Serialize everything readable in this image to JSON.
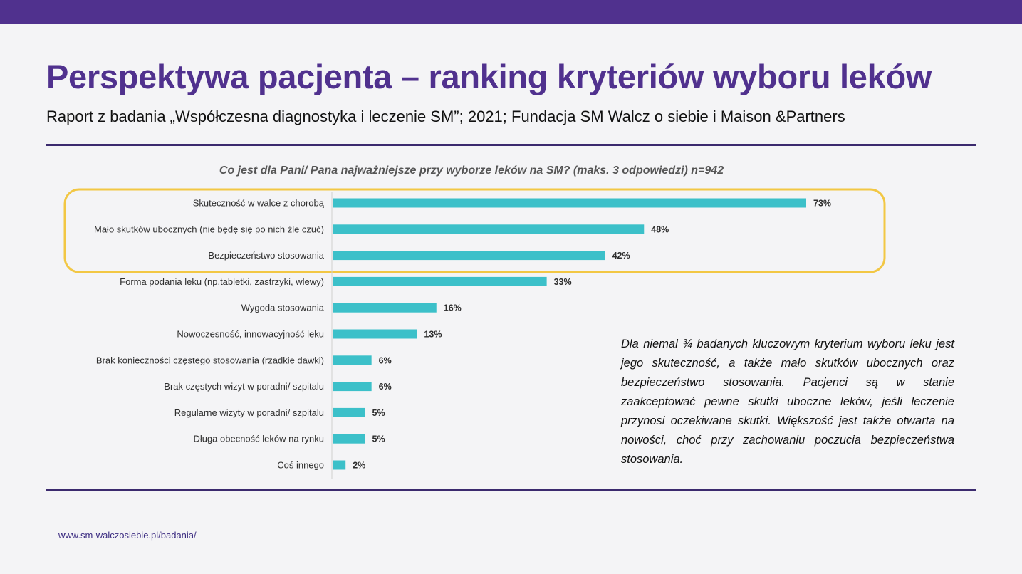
{
  "slide": {
    "title": "Perspektywa pacjenta – ranking kryteriów wyboru leków",
    "subtitle": "Raport z badania „Współczesna diagnostyka i leczenie SM”; 2021; Fundacja SM Walcz o siebie i Maison &Partners",
    "note": "Dla niemal ¾ badanych kluczowym kryterium wyboru leku jest jego skuteczność, a także mało skutków ubocznych oraz bezpieczeństwo stosowania. Pacjenci są w stanie zaakceptować pewne skutki uboczne leków, jeśli leczenie przynosi oczekiwane skutki. Większość jest także otwarta na nowości, choć przy zachowaniu poczucia bezpieczeństwa stosowania.",
    "footer": "www.sm-walczosiebie.pl/badania/"
  },
  "colors": {
    "brand_purple": "#50318e",
    "bar": "#3cc0c9",
    "highlight": "#f2c744"
  },
  "chart_data": {
    "type": "bar",
    "orientation": "horizontal",
    "title": "Co jest dla Pani/ Pana najważniejsze przy wyborze leków na SM? (maks. 3 odpowiedzi) n=942",
    "categories": [
      "Skuteczność w walce z chorobą",
      "Mało skutków ubocznych (nie będę się po nich źle czuć)",
      "Bezpieczeństwo stosowania",
      "Forma podania leku (np.tabletki, zastrzyki, wlewy)",
      "Wygoda stosowania",
      "Nowoczesność, innowacyjność leku",
      "Brak konieczności częstego stosowania (rzadkie dawki)",
      "Brak częstych wizyt w poradni/ szpitalu",
      "Regularne  wizyty w poradni/ szpitalu",
      "Długa obecność leków na rynku",
      "Coś innego"
    ],
    "values": [
      73,
      48,
      42,
      33,
      16,
      13,
      6,
      6,
      5,
      5,
      2
    ],
    "value_labels": [
      "73%",
      "48%",
      "42%",
      "33%",
      "16%",
      "13%",
      "6%",
      "6%",
      "5%",
      "5%",
      "2%"
    ],
    "unit": "%",
    "highlighted_top": 3,
    "grid": false,
    "legend": "none"
  }
}
